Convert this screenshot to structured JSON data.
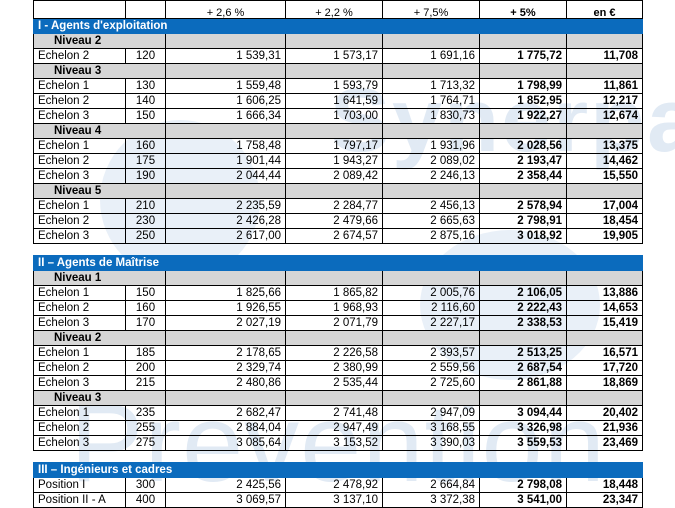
{
  "header": [
    "",
    "",
    "+ 2,6 %",
    "+ 2,2 %",
    "+ 7,5%",
    "+ 5%",
    "en €"
  ],
  "sections": [
    {
      "title": "I - Agents d'exploitation",
      "levels": [
        {
          "name": "Niveau 2",
          "rows": [
            [
              "Echelon 2",
              "120",
              "1 539,31",
              "1 573,17",
              "1 691,16",
              "1 775,72",
              "11,708"
            ]
          ]
        },
        {
          "name": "Niveau 3",
          "rows": [
            [
              "Echelon 1",
              "130",
              "1 559,48",
              "1 593,79",
              "1 713,32",
              "1 798,99",
              "11,861"
            ],
            [
              "Echelon 2",
              "140",
              "1 606,25",
              "1 641,59",
              "1 764,71",
              "1 852,95",
              "12,217"
            ],
            [
              "Echelon 3",
              "150",
              "1 666,34",
              "1 703,00",
              "1 830,73",
              "1 922,27",
              "12,674"
            ]
          ]
        },
        {
          "name": "Niveau 4",
          "rows": [
            [
              "Echelon 1",
              "160",
              "1 758,48",
              "1 797,17",
              "1 931,96",
              "2 028,56",
              "13,375"
            ],
            [
              "Echelon 2",
              "175",
              "1 901,44",
              "1 943,27",
              "2 089,02",
              "2 193,47",
              "14,462"
            ],
            [
              "Echelon 3",
              "190",
              "2 044,44",
              "2 089,42",
              "2 246,13",
              "2 358,44",
              "15,550"
            ]
          ]
        },
        {
          "name": "Niveau 5",
          "rows": [
            [
              "Echelon 1",
              "210",
              "2 235,59",
              "2 284,77",
              "2 456,13",
              "2 578,94",
              "17,004"
            ],
            [
              "Echelon 2",
              "230",
              "2 426,28",
              "2 479,66",
              "2 665,63",
              "2 798,91",
              "18,454"
            ],
            [
              "Echelon 3",
              "250",
              "2 617,00",
              "2 674,57",
              "2 875,16",
              "3 018,92",
              "19,905"
            ]
          ]
        }
      ]
    },
    {
      "title": "II – Agents de Maîtrise",
      "levels": [
        {
          "name": "Niveau 1",
          "rows": [
            [
              "Echelon 1",
              "150",
              "1 825,66",
              "1 865,82",
              "2 005,76",
              "2 106,05",
              "13,886"
            ],
            [
              "Echelon 2",
              "160",
              "1 926,55",
              "1 968,93",
              "2 116,60",
              "2 222,43",
              "14,653"
            ],
            [
              "Echelon 3",
              "170",
              "2 027,19",
              "2 071,79",
              "2 227,17",
              "2 338,53",
              "15,419"
            ]
          ]
        },
        {
          "name": "Niveau 2",
          "rows": [
            [
              "Echelon 1",
              "185",
              "2 178,65",
              "2 226,58",
              "2 393,57",
              "2 513,25",
              "16,571"
            ],
            [
              "Echelon 2",
              "200",
              "2 329,74",
              "2 380,99",
              "2 559,56",
              "2 687,54",
              "17,720"
            ],
            [
              "Echelon 3",
              "215",
              "2 480,86",
              "2 535,44",
              "2 725,60",
              "2 861,88",
              "18,869"
            ]
          ]
        },
        {
          "name": "Niveau 3",
          "rows": [
            [
              "Echelon 1",
              "235",
              "2 682,47",
              "2 741,48",
              "2 947,09",
              "3 094,44",
              "20,402"
            ],
            [
              "Echelon 2",
              "255",
              "2 884,04",
              "2 947,49",
              "3 168,55",
              "3 326,98",
              "21,936"
            ],
            [
              "Echelon 3",
              "275",
              "3 085,64",
              "3 153,52",
              "3 390,03",
              "3 559,53",
              "23,469"
            ]
          ]
        }
      ]
    },
    {
      "title": "III – Ingénieurs et cadres",
      "levels": [
        {
          "name": "",
          "rows": [
            [
              "Position I",
              "300",
              "2 425,56",
              "2 478,92",
              "2 664,84",
              "2 798,08",
              "18,448"
            ],
            [
              "Position II - A",
              "400",
              "3 069,57",
              "3 137,10",
              "3 372,38",
              "3 541,00",
              "23,347"
            ]
          ]
        }
      ]
    }
  ],
  "watermark": {
    "line1": "Synerpa",
    "line2": "Prevention"
  }
}
